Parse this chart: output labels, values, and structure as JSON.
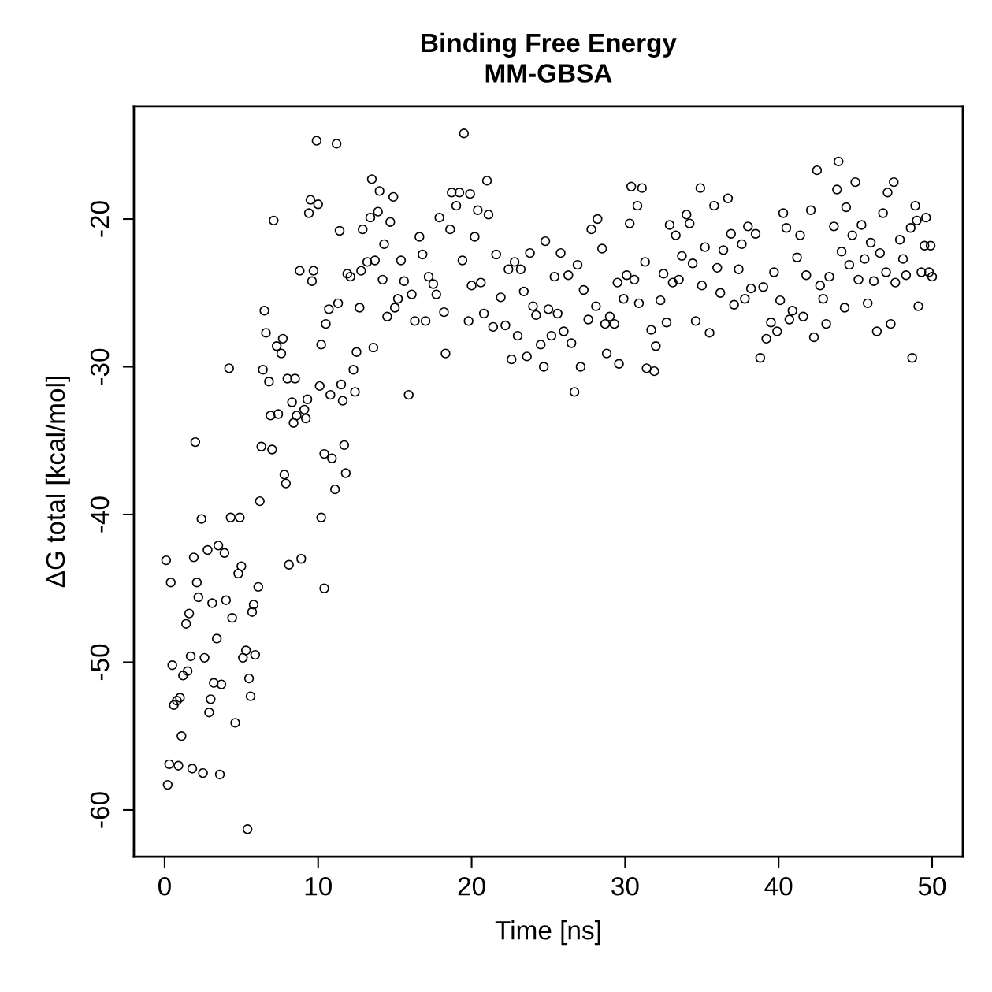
{
  "chart_data": {
    "type": "scatter",
    "title": "Binding Free Energy\nMM-GBSA",
    "xlabel": "Time [ns]",
    "ylabel": "ΔG total [kcal/mol]",
    "xlim": [
      -2,
      52
    ],
    "ylim": [
      -63.15,
      -12.37
    ],
    "xticks": [
      0,
      10,
      20,
      30,
      40,
      50
    ],
    "yticks": [
      -60,
      -50,
      -40,
      -30,
      -20
    ],
    "marker": "circle",
    "grid": false,
    "series": [
      {
        "color": "#000000",
        "x": [
          0.1,
          0.2,
          0.3,
          0.4,
          0.5,
          0.6,
          0.8,
          0.9,
          1.0,
          1.1,
          1.2,
          1.4,
          1.5,
          1.6,
          1.7,
          1.8,
          1.9,
          2.0,
          2.1,
          2.2,
          2.4,
          2.5,
          2.6,
          2.8,
          2.9,
          3.0,
          3.1,
          3.2,
          3.4,
          3.5,
          3.6,
          3.7,
          3.9,
          4.0,
          4.2,
          4.3,
          4.4,
          4.6,
          4.8,
          4.9,
          5.0,
          5.1,
          5.3,
          5.4,
          5.5,
          5.6,
          5.7,
          5.8,
          5.9,
          6.1,
          6.2,
          6.3,
          6.4,
          6.5,
          6.6,
          6.8,
          6.9,
          7.0,
          7.1,
          7.3,
          7.4,
          7.6,
          7.7,
          7.8,
          7.9,
          8.0,
          8.1,
          8.3,
          8.4,
          8.5,
          8.6,
          8.8,
          8.9,
          9.1,
          9.2,
          9.3,
          9.4,
          9.5,
          9.6,
          9.7,
          9.9,
          10.0,
          10.1,
          10.2,
          10.2,
          10.4,
          10.4,
          10.5,
          10.7,
          10.8,
          10.9,
          11.1,
          11.2,
          11.3,
          11.4,
          11.5,
          11.6,
          11.7,
          11.8,
          11.9,
          12.1,
          12.3,
          12.4,
          12.5,
          12.7,
          12.8,
          12.9,
          13.2,
          13.4,
          13.5,
          13.6,
          13.7,
          13.9,
          14.0,
          14.2,
          14.3,
          14.5,
          14.7,
          14.9,
          15.0,
          15.2,
          15.4,
          15.6,
          15.9,
          16.1,
          16.3,
          16.6,
          16.8,
          17.0,
          17.2,
          17.5,
          17.7,
          17.9,
          18.2,
          18.3,
          18.6,
          18.7,
          19.0,
          19.2,
          19.4,
          19.5,
          19.8,
          19.9,
          20.0,
          20.2,
          20.4,
          20.6,
          20.8,
          21.0,
          21.1,
          21.4,
          21.6,
          21.9,
          22.2,
          22.4,
          22.6,
          22.8,
          23.0,
          23.2,
          23.4,
          23.6,
          23.8,
          24.0,
          24.2,
          24.5,
          24.7,
          24.8,
          25.0,
          25.2,
          25.4,
          25.6,
          25.8,
          26.0,
          26.3,
          26.5,
          26.7,
          26.9,
          27.1,
          27.3,
          27.6,
          27.8,
          28.1,
          28.2,
          28.5,
          28.7,
          28.8,
          29.0,
          29.3,
          29.5,
          29.6,
          29.9,
          30.1,
          30.3,
          30.4,
          30.6,
          30.8,
          30.9,
          31.1,
          31.3,
          31.4,
          31.7,
          31.9,
          32.0,
          32.3,
          32.5,
          32.7,
          32.9,
          33.1,
          33.3,
          33.5,
          33.7,
          34.0,
          34.2,
          34.4,
          34.6,
          34.9,
          35.0,
          35.2,
          35.5,
          35.8,
          36.0,
          36.2,
          36.4,
          36.7,
          36.9,
          37.1,
          37.4,
          37.6,
          37.8,
          38.0,
          38.2,
          38.5,
          38.8,
          39.0,
          39.2,
          39.5,
          39.7,
          39.9,
          40.1,
          40.3,
          40.5,
          40.7,
          40.9,
          41.2,
          41.4,
          41.6,
          41.8,
          42.1,
          42.3,
          42.5,
          42.7,
          42.9,
          43.1,
          43.3,
          43.6,
          43.8,
          43.9,
          44.1,
          44.3,
          44.4,
          44.6,
          44.8,
          45.0,
          45.2,
          45.4,
          45.6,
          45.8,
          46.0,
          46.2,
          46.4,
          46.6,
          46.8,
          47.0,
          47.1,
          47.3,
          47.5,
          47.6,
          47.9,
          48.1,
          48.3,
          48.6,
          48.7,
          48.9,
          49.0,
          49.1,
          49.3,
          49.5,
          49.6,
          49.8,
          49.9,
          50.0
        ],
        "values": [
          -43.1,
          -58.3,
          -56.9,
          -44.6,
          -50.2,
          -52.9,
          -52.6,
          -57.0,
          -52.4,
          -55.0,
          -50.9,
          -47.4,
          -50.6,
          -46.7,
          -49.6,
          -57.2,
          -42.9,
          -35.1,
          -44.6,
          -45.6,
          -40.3,
          -57.5,
          -49.7,
          -42.4,
          -53.4,
          -52.5,
          -46.0,
          -51.4,
          -48.4,
          -42.1,
          -57.6,
          -51.5,
          -42.6,
          -45.8,
          -30.1,
          -40.2,
          -47.0,
          -54.1,
          -44.0,
          -40.2,
          -43.5,
          -49.7,
          -49.2,
          -61.3,
          -51.1,
          -52.3,
          -46.6,
          -46.1,
          -49.5,
          -44.9,
          -39.1,
          -35.4,
          -30.2,
          -26.2,
          -27.7,
          -31.0,
          -33.3,
          -35.6,
          -20.1,
          -28.6,
          -33.2,
          -29.1,
          -28.1,
          -37.3,
          -37.9,
          -30.8,
          -43.4,
          -32.4,
          -33.8,
          -30.8,
          -33.3,
          -23.5,
          -43.0,
          -32.9,
          -33.5,
          -32.2,
          -19.6,
          -18.7,
          -24.2,
          -23.5,
          -14.7,
          -19.0,
          -31.3,
          -28.5,
          -40.2,
          -35.9,
          -45.0,
          -27.1,
          -26.1,
          -31.9,
          -36.2,
          -38.3,
          -14.9,
          -25.7,
          -20.8,
          -31.2,
          -32.3,
          -35.3,
          -37.2,
          -23.7,
          -23.9,
          -30.2,
          -31.7,
          -29.0,
          -26.0,
          -23.5,
          -20.7,
          -22.9,
          -19.9,
          -17.3,
          -28.7,
          -22.8,
          -19.5,
          -18.1,
          -24.1,
          -21.7,
          -26.6,
          -20.2,
          -18.5,
          -26.0,
          -25.4,
          -22.8,
          -24.2,
          -31.9,
          -25.1,
          -26.9,
          -21.2,
          -22.4,
          -26.9,
          -23.9,
          -24.4,
          -25.1,
          -19.9,
          -26.3,
          -29.1,
          -20.7,
          -18.2,
          -19.1,
          -18.2,
          -22.8,
          -14.2,
          -26.9,
          -18.3,
          -24.5,
          -21.2,
          -19.4,
          -24.3,
          -26.4,
          -17.4,
          -19.7,
          -27.3,
          -22.4,
          -25.3,
          -27.2,
          -23.4,
          -29.5,
          -22.9,
          -27.9,
          -23.4,
          -24.9,
          -29.3,
          -22.3,
          -25.9,
          -26.5,
          -28.5,
          -30.0,
          -21.5,
          -26.1,
          -27.9,
          -23.9,
          -26.4,
          -22.3,
          -27.6,
          -23.8,
          -28.4,
          -31.7,
          -23.1,
          -30.0,
          -24.8,
          -26.8,
          -20.7,
          -25.9,
          -20.0,
          -22.0,
          -27.1,
          -29.1,
          -26.6,
          -27.1,
          -24.3,
          -29.8,
          -25.4,
          -23.8,
          -20.3,
          -17.8,
          -24.1,
          -19.1,
          -25.7,
          -17.9,
          -22.9,
          -30.1,
          -27.5,
          -30.3,
          -28.6,
          -25.5,
          -23.7,
          -27.0,
          -20.4,
          -24.3,
          -21.1,
          -24.1,
          -22.5,
          -19.7,
          -20.3,
          -23.0,
          -26.9,
          -17.9,
          -24.5,
          -21.9,
          -27.7,
          -19.1,
          -23.3,
          -25.0,
          -22.1,
          -18.6,
          -21.0,
          -25.8,
          -23.4,
          -21.7,
          -25.4,
          -20.5,
          -24.7,
          -21.0,
          -29.4,
          -24.6,
          -28.1,
          -27.0,
          -23.6,
          -27.6,
          -25.5,
          -19.6,
          -20.6,
          -26.8,
          -26.2,
          -22.6,
          -21.1,
          -26.6,
          -23.8,
          -19.4,
          -28.0,
          -16.7,
          -24.5,
          -25.4,
          -27.1,
          -23.9,
          -20.5,
          -18.0,
          -16.1,
          -22.2,
          -26.0,
          -19.2,
          -23.1,
          -21.1,
          -17.5,
          -24.1,
          -20.4,
          -22.7,
          -25.7,
          -21.6,
          -24.2,
          -27.6,
          -22.3,
          -19.6,
          -23.6,
          -18.2,
          -27.1,
          -17.5,
          -24.3,
          -21.4,
          -22.7,
          -23.8,
          -20.6,
          -29.4,
          -19.1,
          -20.1,
          -25.9,
          -23.6,
          -21.8,
          -19.9,
          -23.6,
          -21.8,
          -23.9
        ]
      }
    ]
  }
}
